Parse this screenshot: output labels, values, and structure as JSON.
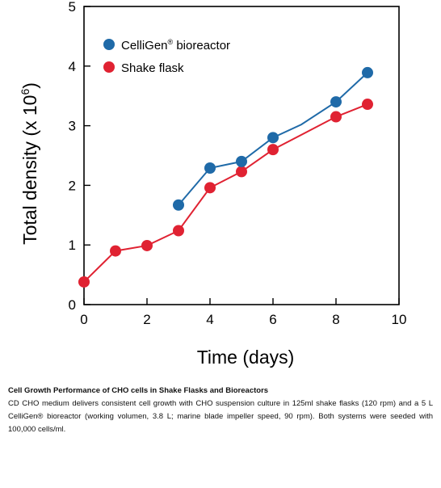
{
  "chart_data": {
    "type": "line",
    "xlabel": "Time (days)",
    "ylabel_main": "Total density (x 10",
    "ylabel_sup": "6",
    "ylabel_close": ")",
    "xlim": [
      0,
      10
    ],
    "ylim": [
      0,
      5
    ],
    "xticks": [
      "0",
      "2",
      "4",
      "6",
      "8",
      "10"
    ],
    "yticks": [
      "0",
      "1",
      "2",
      "3",
      "4",
      "5"
    ],
    "grid": false,
    "legend_position": "top-left",
    "series": [
      {
        "name_main": "CelliGen",
        "name_reg": "®",
        "name_rest": " bioreactor",
        "color": "#1f6aa8",
        "points": [
          [
            3.0,
            1.67
          ],
          [
            4.0,
            2.29
          ],
          [
            5.0,
            2.4
          ],
          [
            6.0,
            2.8
          ],
          [
            9.0,
            3.89
          ]
        ],
        "line": [
          [
            3.0,
            1.67
          ],
          [
            4.0,
            2.29
          ],
          [
            5.0,
            2.4
          ],
          [
            6.0,
            2.8
          ],
          [
            6.9,
            3.02
          ],
          [
            8.0,
            3.4
          ],
          [
            9.0,
            3.89
          ]
        ]
      },
      {
        "name_main": "Shake flask",
        "name_reg": "",
        "name_rest": "",
        "color": "#e02232",
        "points": [
          [
            0.0,
            0.38
          ],
          [
            1.0,
            0.9
          ],
          [
            2.0,
            0.99
          ],
          [
            3.0,
            1.24
          ],
          [
            4.0,
            1.96
          ],
          [
            5.0,
            2.23
          ],
          [
            6.0,
            2.6
          ],
          [
            8.0,
            3.15
          ],
          [
            9.0,
            3.36
          ]
        ],
        "line": [
          [
            0.0,
            0.38
          ],
          [
            1.0,
            0.9
          ],
          [
            2.0,
            0.99
          ],
          [
            3.0,
            1.24
          ],
          [
            4.0,
            1.96
          ],
          [
            5.0,
            2.23
          ],
          [
            6.0,
            2.6
          ],
          [
            8.0,
            3.15
          ],
          [
            9.0,
            3.36
          ]
        ]
      }
    ],
    "extra_points": [
      {
        "series": 0,
        "x": 8.0,
        "y": 3.4
      }
    ]
  },
  "caption": {
    "title": "Cell Growth Performance of CHO cells in Shake Flasks and Bioreactors",
    "body": "CD CHO medium delivers consistent cell growth with CHO suspension culture in 125ml shake flasks (120 rpm) and a 5 L CelliGen® bioreactor (working volumen, 3.8 L; marine blade impeller speed, 90 rpm). Both systems were seeded with 100,000 cells/ml."
  }
}
